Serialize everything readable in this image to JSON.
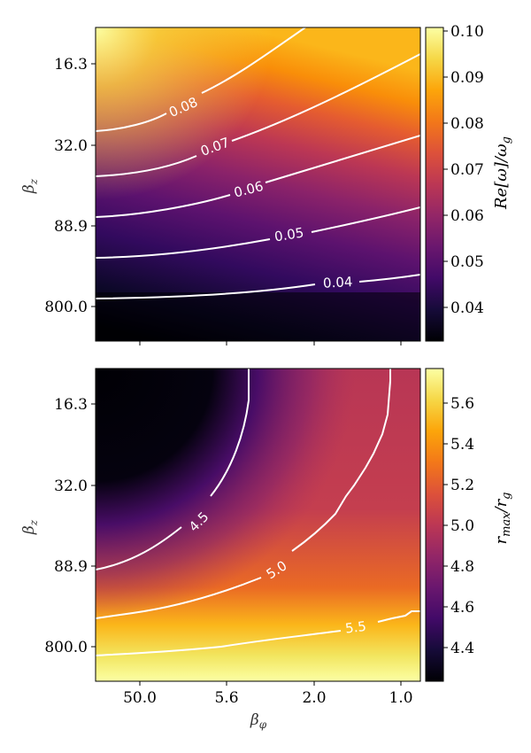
{
  "chart_data": [
    {
      "type": "heatmap",
      "x_ticks": [
        "50.0",
        "5.6",
        "2.0",
        "1.0"
      ],
      "y_ticks": [
        "16.3",
        "32.0",
        "88.9",
        "800.0"
      ],
      "xlabel": "",
      "ylabel": "β_z",
      "colorbar": {
        "label": "Re[ω]/ω_g",
        "ticks": [
          "0.10",
          "0.09",
          "0.08",
          "0.07",
          "0.06",
          "0.05",
          "0.04"
        ],
        "range": [
          0.033,
          0.101
        ],
        "colormap": "inferno"
      },
      "contours": [
        {
          "level": "0.08"
        },
        {
          "level": "0.07"
        },
        {
          "level": "0.06"
        },
        {
          "level": "0.05"
        },
        {
          "level": "0.04"
        }
      ]
    },
    {
      "type": "heatmap",
      "x_ticks": [
        "50.0",
        "5.6",
        "2.0",
        "1.0"
      ],
      "y_ticks": [
        "16.3",
        "32.0",
        "88.9",
        "800.0"
      ],
      "xlabel": "β_φ",
      "ylabel": "β_z",
      "colorbar": {
        "label": "r_max/r_g",
        "ticks": [
          "5.6",
          "5.4",
          "5.2",
          "5.0",
          "4.8",
          "4.6",
          "4.4"
        ],
        "range": [
          4.23,
          5.76
        ],
        "colormap": "inferno"
      },
      "contours": [
        {
          "level": "4.5"
        },
        {
          "level": "5.0"
        },
        {
          "level": "5.5"
        }
      ]
    }
  ]
}
